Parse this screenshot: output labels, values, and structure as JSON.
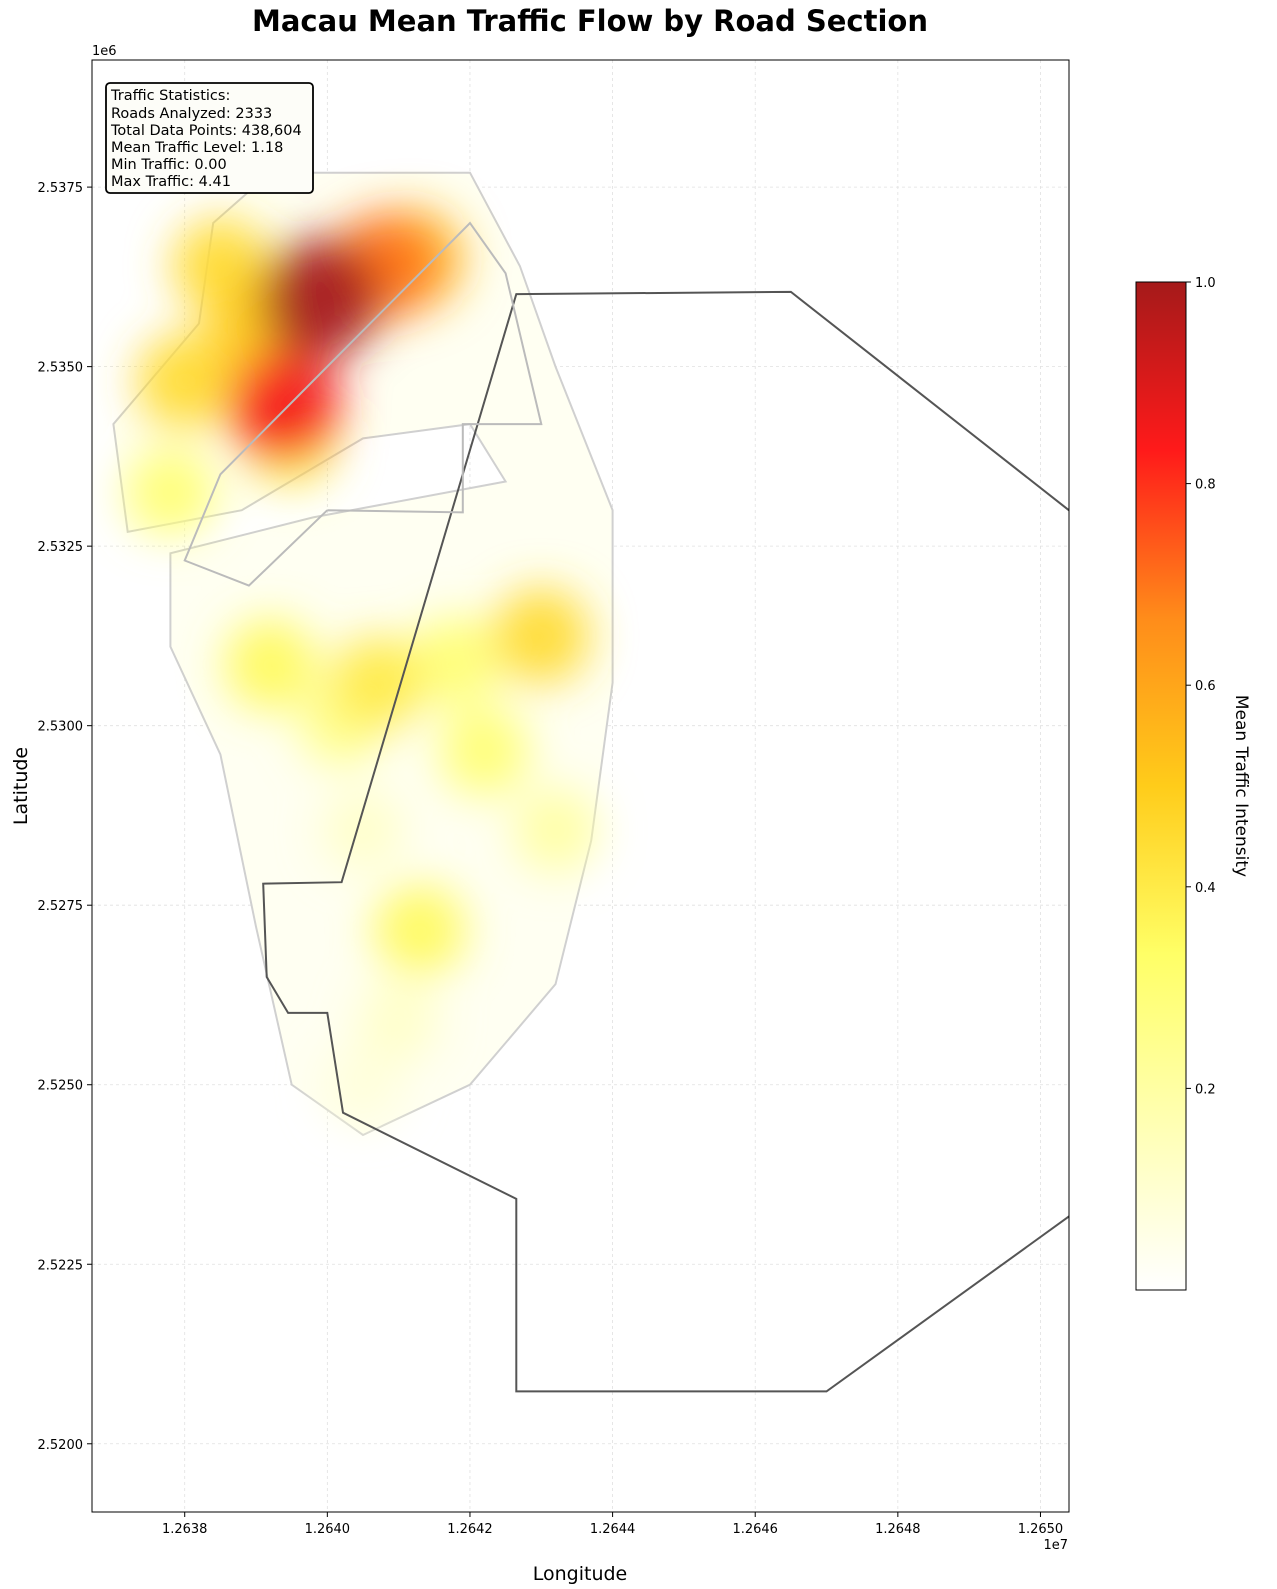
{
  "chart_data": {
    "type": "heatmap",
    "title": "Macau Mean Traffic Flow by Road Section",
    "xlabel": "Longitude",
    "ylabel": "Latitude",
    "x_offset_label": "1e7",
    "y_offset_label": "1e6",
    "x_ticks": [
      {
        "value": 1.2638,
        "label": "1.2638"
      },
      {
        "value": 1.264,
        "label": "1.2640"
      },
      {
        "value": 1.2642,
        "label": "1.2642"
      },
      {
        "value": 1.2644,
        "label": "1.2644"
      },
      {
        "value": 1.2646,
        "label": "1.2646"
      },
      {
        "value": 1.2648,
        "label": "1.2648"
      },
      {
        "value": 1.265,
        "label": "1.2650"
      }
    ],
    "y_ticks": [
      {
        "value": 2.52,
        "label": "2.5200"
      },
      {
        "value": 2.5225,
        "label": "2.5225"
      },
      {
        "value": 2.525,
        "label": "2.5250"
      },
      {
        "value": 2.5275,
        "label": "2.5275"
      },
      {
        "value": 2.53,
        "label": "2.5300"
      },
      {
        "value": 2.5325,
        "label": "2.5325"
      },
      {
        "value": 2.535,
        "label": "2.5350"
      },
      {
        "value": 2.5375,
        "label": "2.5375"
      }
    ],
    "xlim": [
      1.26367,
      1.26504
    ],
    "ylim": [
      2.51905,
      2.53927
    ],
    "grid": true,
    "colorbar": {
      "label": "Mean Traffic Intensity",
      "range": [
        0.0,
        1.0
      ],
      "ticks": [
        "0.2",
        "0.4",
        "0.6",
        "0.8",
        "1.0"
      ],
      "colors": [
        "#ffffff",
        "#ffffb2",
        "#ffff66",
        "#ffcc1a",
        "#ff8c1a",
        "#ff1a1a",
        "#a51a1a"
      ]
    },
    "hotspots": [
      {
        "lon": 1.26399,
        "lat": 2.53595,
        "intensity": 1.0
      },
      {
        "lon": 1.26394,
        "lat": 2.53445,
        "intensity": 0.85
      },
      {
        "lon": 1.26408,
        "lat": 2.5364,
        "intensity": 0.7
      },
      {
        "lon": 1.26412,
        "lat": 2.5365,
        "intensity": 0.55
      },
      {
        "lon": 1.2639,
        "lat": 2.53555,
        "intensity": 0.5
      },
      {
        "lon": 1.26385,
        "lat": 2.5364,
        "intensity": 0.45
      },
      {
        "lon": 1.2638,
        "lat": 2.5348,
        "intensity": 0.45
      },
      {
        "lon": 1.26378,
        "lat": 2.53325,
        "intensity": 0.3
      },
      {
        "lon": 1.26395,
        "lat": 2.53395,
        "intensity": 0.35
      },
      {
        "lon": 1.26407,
        "lat": 2.5306,
        "intensity": 0.4
      },
      {
        "lon": 1.26392,
        "lat": 2.53085,
        "intensity": 0.35
      },
      {
        "lon": 1.2643,
        "lat": 2.53125,
        "intensity": 0.45
      },
      {
        "lon": 1.26418,
        "lat": 2.5309,
        "intensity": 0.3
      },
      {
        "lon": 1.26422,
        "lat": 2.52965,
        "intensity": 0.3
      },
      {
        "lon": 1.26402,
        "lat": 2.53005,
        "intensity": 0.25
      },
      {
        "lon": 1.26413,
        "lat": 2.52715,
        "intensity": 0.35
      },
      {
        "lon": 1.26432,
        "lat": 2.52855,
        "intensity": 0.2
      },
      {
        "lon": 1.26405,
        "lat": 2.52855,
        "intensity": 0.12
      },
      {
        "lon": 1.2641,
        "lat": 2.5259,
        "intensity": 0.12
      },
      {
        "lon": 1.26405,
        "lat": 2.525,
        "intensity": 0.08
      }
    ],
    "outer_boundary": [
      [
        1.264265,
        2.53601
      ],
      [
        1.26465,
        2.53604
      ],
      [
        1.26524,
        2.53144
      ],
      [
        1.26524,
        2.5246
      ],
      [
        1.2647,
        2.52073
      ],
      [
        1.264265,
        2.52073
      ],
      [
        1.264265,
        2.52341
      ],
      [
        1.264022,
        2.52461
      ],
      [
        1.264,
        2.526
      ],
      [
        1.263945,
        2.526
      ],
      [
        1.263915,
        2.5265
      ],
      [
        1.26391,
        2.5278
      ],
      [
        1.26402,
        2.52782
      ]
    ],
    "land_outline": [
      [
        1.264,
        2.533
      ],
      [
        1.26389,
        2.53195
      ],
      [
        1.2638,
        2.5323
      ],
      [
        1.26385,
        2.5335
      ],
      [
        1.264,
        2.535
      ],
      [
        1.2642,
        2.537
      ],
      [
        1.26425,
        2.5363
      ],
      [
        1.2643,
        2.5342
      ],
      [
        1.26419,
        2.5342
      ],
      [
        1.26419,
        2.53297
      ],
      [
        1.264,
        2.533
      ]
    ],
    "annotation": {
      "lines": [
        "Traffic Statistics:",
        "Roads Analyzed: 2333",
        "Total Data Points: 438,604",
        "Mean Traffic Level: 1.18",
        "Min Traffic: 0.00",
        "Max Traffic: 4.41"
      ]
    }
  }
}
